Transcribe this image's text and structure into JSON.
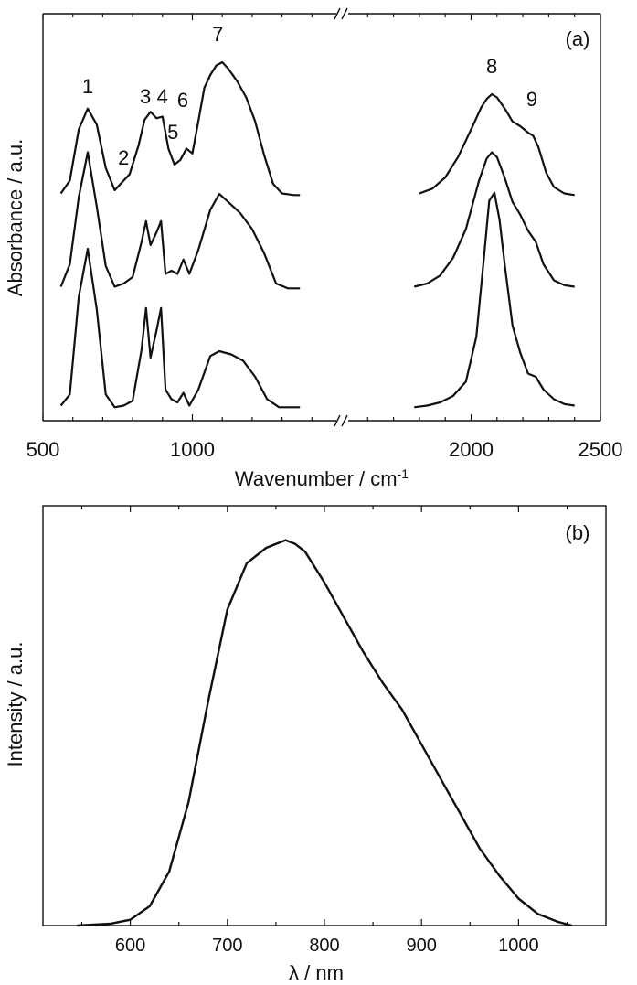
{
  "chart_data": [
    {
      "type": "line",
      "panel_label": "(a)",
      "xlabel": "Wavenumber / cm",
      "xlabel_sup": "-1",
      "ylabel": "Absorbance / a.u.",
      "axis_break": true,
      "segments": [
        {
          "xlim": [
            500,
            1500
          ],
          "ticks": [
            "500",
            "1000"
          ],
          "tick_values": [
            500,
            1000
          ]
        },
        {
          "xlim": [
            1500,
            2500
          ],
          "ticks": [
            "2000",
            "2500"
          ],
          "tick_values": [
            2000,
            2500
          ]
        }
      ],
      "peak_labels": [
        {
          "text": "1",
          "x": 650
        },
        {
          "text": "2",
          "x": 770
        },
        {
          "text": "3",
          "x": 843
        },
        {
          "text": "4",
          "x": 900
        },
        {
          "text": "5",
          "x": 935
        },
        {
          "text": "6",
          "x": 968
        },
        {
          "text": "7",
          "x": 1085
        },
        {
          "text": "8",
          "x": 2080
        },
        {
          "text": "9",
          "x": 2235
        }
      ],
      "series": [
        {
          "segment1": {
            "x": [
              560,
              590,
              620,
              650,
              680,
              710,
              740,
              760,
              790,
              820,
              840,
              860,
              880,
              900,
              920,
              940,
              960,
              980,
              1000,
              1020,
              1040,
              1060,
              1080,
              1100,
              1120,
              1150,
              1180,
              1210,
              1240,
              1270,
              1300,
              1340,
              1360
            ],
            "y": [
              0.02,
              0.1,
              0.42,
              0.55,
              0.45,
              0.18,
              0.04,
              0.08,
              0.14,
              0.32,
              0.48,
              0.53,
              0.49,
              0.5,
              0.3,
              0.2,
              0.23,
              0.3,
              0.27,
              0.47,
              0.68,
              0.76,
              0.82,
              0.84,
              0.8,
              0.72,
              0.62,
              0.47,
              0.26,
              0.08,
              0.02,
              0.01,
              0.01
            ]
          },
          "segment2": {
            "x": [
              1800,
              1850,
              1900,
              1950,
              2000,
              2040,
              2060,
              2080,
              2100,
              2130,
              2160,
              2190,
              2220,
              2240,
              2260,
              2290,
              2320,
              2360,
              2400
            ],
            "y": [
              0.02,
              0.05,
              0.12,
              0.25,
              0.42,
              0.56,
              0.61,
              0.64,
              0.62,
              0.55,
              0.47,
              0.44,
              0.4,
              0.38,
              0.31,
              0.15,
              0.06,
              0.02,
              0.01
            ]
          }
        },
        {
          "segment1": {
            "x": [
              560,
              590,
              620,
              650,
              680,
              710,
              740,
              770,
              800,
              830,
              845,
              860,
              880,
              895,
              910,
              930,
              950,
              970,
              990,
              1020,
              1060,
              1090,
              1120,
              1160,
              1200,
              1240,
              1280,
              1320,
              1360
            ],
            "y": [
              0.02,
              0.16,
              0.58,
              0.86,
              0.52,
              0.15,
              0.02,
              0.04,
              0.08,
              0.3,
              0.43,
              0.28,
              0.36,
              0.43,
              0.1,
              0.12,
              0.1,
              0.19,
              0.1,
              0.25,
              0.5,
              0.6,
              0.55,
              0.48,
              0.38,
              0.23,
              0.04,
              0.01,
              0.01
            ]
          },
          "segment2": {
            "x": [
              1780,
              1830,
              1880,
              1930,
              1980,
              2030,
              2060,
              2080,
              2100,
              2130,
              2160,
              2190,
              2220,
              2250,
              2280,
              2320,
              2360,
              2400
            ],
            "y": [
              0.02,
              0.04,
              0.09,
              0.2,
              0.38,
              0.68,
              0.82,
              0.86,
              0.83,
              0.7,
              0.55,
              0.47,
              0.37,
              0.3,
              0.16,
              0.06,
              0.03,
              0.02
            ]
          }
        },
        {
          "segment1": {
            "x": [
              560,
              590,
              620,
              650,
              680,
              710,
              740,
              770,
              800,
              830,
              845,
              860,
              880,
              895,
              910,
              930,
              950,
              970,
              990,
              1020,
              1060,
              1090,
              1130,
              1170,
              1210,
              1250,
              1290,
              1330,
              1360
            ],
            "y": [
              0.02,
              0.09,
              0.7,
              1.0,
              0.62,
              0.09,
              0.01,
              0.02,
              0.05,
              0.37,
              0.63,
              0.32,
              0.49,
              0.63,
              0.12,
              0.06,
              0.04,
              0.1,
              0.02,
              0.12,
              0.33,
              0.36,
              0.34,
              0.3,
              0.2,
              0.06,
              0.01,
              0.01,
              0.01
            ]
          },
          "segment2": {
            "x": [
              1780,
              1830,
              1880,
              1930,
              1980,
              2020,
              2050,
              2070,
              2090,
              2110,
              2130,
              2160,
              2190,
              2220,
              2250,
              2280,
              2320,
              2360,
              2400
            ],
            "y": [
              0.01,
              0.02,
              0.04,
              0.08,
              0.17,
              0.45,
              0.95,
              1.3,
              1.35,
              1.18,
              0.9,
              0.52,
              0.35,
              0.22,
              0.2,
              0.12,
              0.06,
              0.03,
              0.02
            ]
          }
        }
      ]
    },
    {
      "type": "line",
      "panel_label": "(b)",
      "xlabel": "λ / nm",
      "ylabel": "Intensity / a.u.",
      "xlim": [
        510,
        1090
      ],
      "xticks": [
        "600",
        "700",
        "800",
        "900",
        "1000"
      ],
      "xtick_values": [
        600,
        700,
        800,
        900,
        1000
      ],
      "ylim": [
        0,
        1.1
      ],
      "series": [
        {
          "x": [
            545,
            580,
            600,
            620,
            640,
            660,
            680,
            700,
            720,
            740,
            750,
            760,
            770,
            780,
            800,
            820,
            840,
            860,
            880,
            900,
            920,
            940,
            960,
            980,
            1000,
            1020,
            1040,
            1055
          ],
          "y": [
            0.0,
            0.005,
            0.015,
            0.05,
            0.14,
            0.32,
            0.58,
            0.82,
            0.94,
            0.98,
            0.99,
            1.0,
            0.99,
            0.97,
            0.89,
            0.8,
            0.71,
            0.63,
            0.56,
            0.47,
            0.38,
            0.29,
            0.2,
            0.13,
            0.07,
            0.03,
            0.01,
            0.0
          ]
        }
      ]
    }
  ]
}
